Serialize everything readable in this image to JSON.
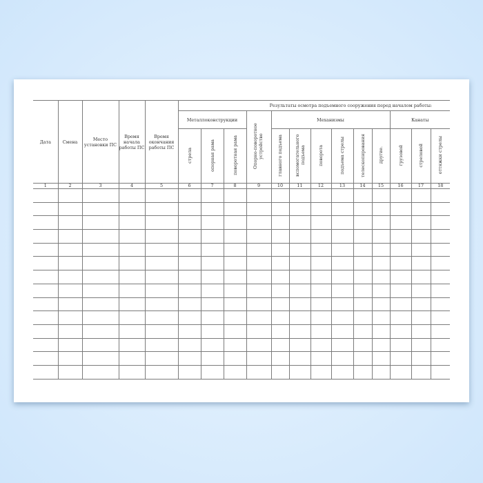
{
  "document": {
    "columns": {
      "date": "Дата",
      "shift": "Смена",
      "location": "Место установки ПС",
      "start_time": "Время начала работы ПС",
      "end_time": "Время окончания работы ПС"
    },
    "results_header": "Результаты осмотра подъемного сооружения перед началом работы:",
    "groups": {
      "metal": "Металлоконструкции",
      "slewing": "Опорно-поворотное устройство",
      "mechanisms": "Механизмы",
      "ropes": "Канаты"
    },
    "metal_items": [
      "стрела",
      "опорная рама",
      "поворотная рама"
    ],
    "mechanism_items": [
      "главного подъема",
      "вспомогательного подъема",
      "поворота",
      "подъема стрелы",
      "телескопирования",
      "другие."
    ],
    "rope_items": [
      "грузовой",
      "стреловой",
      "оттяжки стрелы"
    ],
    "column_numbers": [
      "1",
      "2",
      "3",
      "4",
      "5",
      "6",
      "7",
      "8",
      "9",
      "10",
      "11",
      "12",
      "13",
      "14",
      "15",
      "16",
      "17",
      "18"
    ],
    "empty_rows": 14
  },
  "colors": {
    "background": "#d6eafc",
    "lines": "#7a7a7a"
  }
}
